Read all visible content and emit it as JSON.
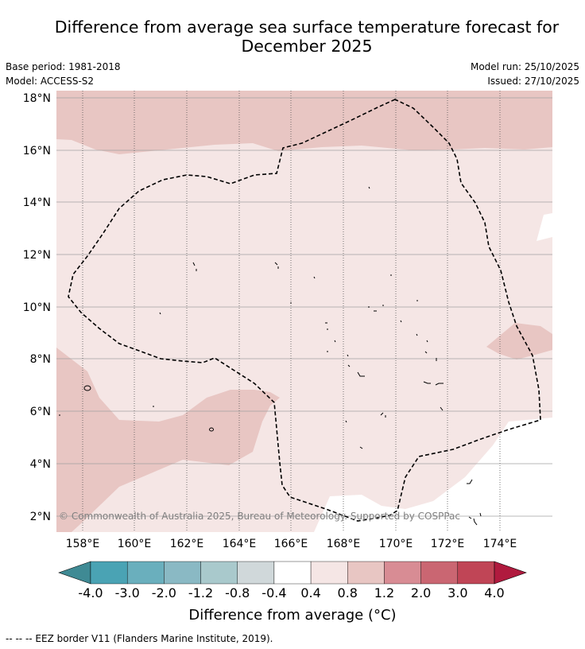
{
  "title_line1": "Difference from average sea surface temperature forecast for",
  "title_line2": "December 2025",
  "base_period": "Base period: 1981-2018",
  "model": "Model: ACCESS-S2",
  "model_run": "Model run: 25/10/2025",
  "issued": "Issued: 27/10/2025",
  "lat_labels": [
    "18°N",
    "16°N",
    "14°N",
    "12°N",
    "10°N",
    "8°N",
    "6°N",
    "4°N",
    "2°N"
  ],
  "lon_labels": [
    "158°E",
    "160°E",
    "162°E",
    "164°E",
    "166°E",
    "168°E",
    "170°E",
    "172°E",
    "174°E"
  ],
  "copyright": "© Commonwealth of Australia 2025, Bureau of Meteorology. Supported by COSPPac",
  "colorbar": {
    "ticks": [
      "-4.0",
      "-3.0",
      "-2.0",
      "-1.2",
      "-0.8",
      "-0.4",
      "0.4",
      "0.8",
      "1.2",
      "2.0",
      "3.0",
      "4.0"
    ],
    "colors": [
      "#4aa3b4",
      "#6aafbd",
      "#8ab9c4",
      "#a9c9cc",
      "#d0d8da",
      "#ffffff",
      "#f5e6e5",
      "#e8c6c3",
      "#d88c94",
      "#ca6672",
      "#c04556"
    ],
    "under_color": "#3f8a94",
    "over_color": "#b01a3e",
    "label": "Difference from average (°C)"
  },
  "footnote": "--  --  -- EEZ border V11 (Flanders Marine Institute, 2019)."
}
